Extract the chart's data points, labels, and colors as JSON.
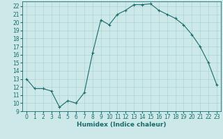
{
  "x": [
    0,
    1,
    2,
    3,
    4,
    5,
    6,
    7,
    8,
    9,
    10,
    11,
    12,
    13,
    14,
    15,
    16,
    17,
    18,
    19,
    20,
    21,
    22,
    23
  ],
  "y": [
    13.0,
    11.8,
    11.8,
    11.5,
    9.5,
    10.3,
    10.0,
    11.3,
    16.2,
    20.3,
    19.7,
    21.0,
    21.5,
    22.2,
    22.2,
    22.3,
    21.5,
    21.0,
    20.5,
    19.7,
    18.5,
    17.0,
    15.0,
    12.3
  ],
  "title": "",
  "xlabel": "Humidex (Indice chaleur)",
  "ylabel": "",
  "xlim": [
    -0.5,
    23.5
  ],
  "ylim": [
    9,
    22.6
  ],
  "yticks": [
    9,
    10,
    11,
    12,
    13,
    14,
    15,
    16,
    17,
    18,
    19,
    20,
    21,
    22
  ],
  "xticks": [
    0,
    1,
    2,
    3,
    4,
    5,
    6,
    7,
    8,
    9,
    10,
    11,
    12,
    13,
    14,
    15,
    16,
    17,
    18,
    19,
    20,
    21,
    22,
    23
  ],
  "line_color": "#1a6b6b",
  "marker": "+",
  "bg_color": "#cce8e8",
  "grid_color": "#aad4d4",
  "tick_fontsize": 5.5,
  "label_fontsize": 6.5
}
